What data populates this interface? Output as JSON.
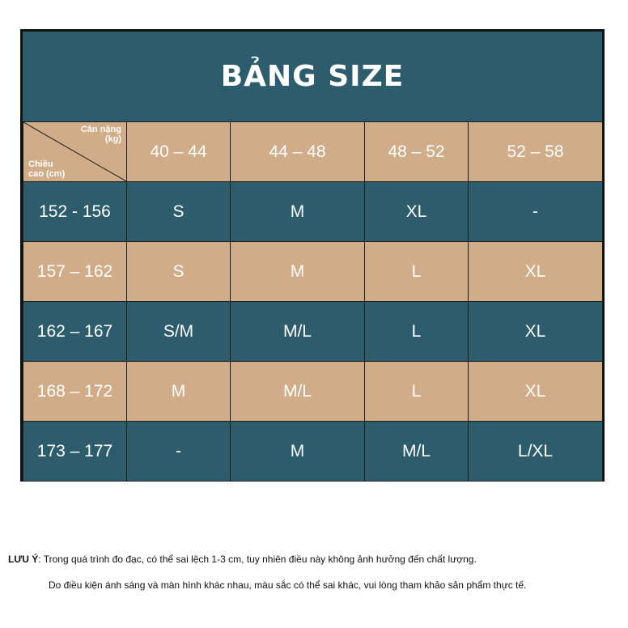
{
  "title": "BẢNG SIZE",
  "corner": {
    "top_line1": "Cân nặng",
    "top_line2": "(kg)",
    "bottom_line1": "Chiều",
    "bottom_line2": "cao (cm)"
  },
  "weight_columns": [
    "40 – 44",
    "44 – 48",
    "48 – 52",
    "52 – 58"
  ],
  "rows": [
    {
      "height": "152 - 156",
      "sizes": [
        "S",
        "M",
        "XL",
        "-"
      ]
    },
    {
      "height": "157 – 162",
      "sizes": [
        "S",
        "M",
        "L",
        "XL"
      ]
    },
    {
      "height": "162 – 167",
      "sizes": [
        "S/M",
        "M/L",
        "L",
        "XL"
      ]
    },
    {
      "height": "168 – 172",
      "sizes": [
        "M",
        "M/L",
        "L",
        "XL"
      ]
    },
    {
      "height": "173 – 177",
      "sizes": [
        "-",
        "M",
        "M/L",
        "L/XL"
      ]
    }
  ],
  "notes": {
    "label": "LƯU Ý",
    "line1": ": Trong quá trình đo đạc, có thể sai lệch 1-3 cm, tuy nhiên điều này không ảnh hưởng đến chất lượng.",
    "line2": "Do điều kiện ánh sáng và màn hình khác nhau, màu sắc có thể sai khác, vui lòng tham khảo sản phẩm thực tế."
  },
  "colors": {
    "teal": "#2d5d6c",
    "tan": "#d0ad88",
    "text": "#ffffff"
  }
}
